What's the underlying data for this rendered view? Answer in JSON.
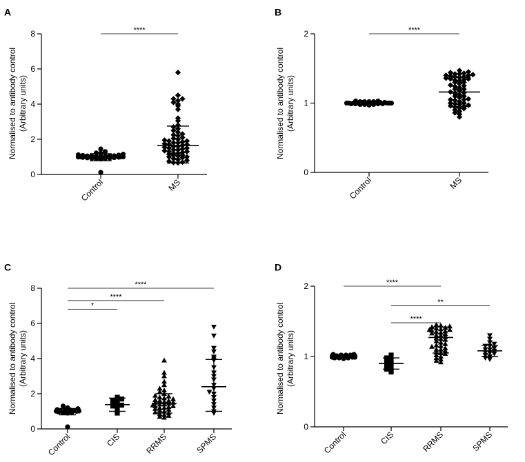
{
  "colors": {
    "ink": "#000000",
    "background": "#ffffff"
  },
  "chart_data": [
    {
      "type": "scatter",
      "panel_label": "A",
      "categories": [
        "Control",
        "MS"
      ],
      "ylabel": [
        "Normalised to antibody control",
        "(Arbitrary units)"
      ],
      "ylim": [
        0,
        8
      ],
      "yticks": [
        "0",
        "2",
        "4",
        "6",
        "8"
      ],
      "markers": [
        "circle",
        "diamond"
      ],
      "series": [
        {
          "name": "Control",
          "marker": "circle",
          "mean": 0.98,
          "err_low": 0.78,
          "err_high": 1.18,
          "values": [
            1.0,
            1.02,
            0.98,
            1.05,
            0.95,
            1.1,
            0.92,
            1.0,
            1.2,
            1.3,
            1.45,
            1.08,
            0.97,
            1.04,
            0.9,
            1.15,
            1.01,
            0.96,
            1.03,
            0.99,
            1.06,
            0.94,
            1.12,
            0.88,
            1.0,
            1.22,
            1.05,
            0.93,
            0.12
          ]
        },
        {
          "name": "MS",
          "marker": "diamond",
          "mean": 1.65,
          "err_low": 0.65,
          "err_high": 2.75,
          "values": [
            5.8,
            4.5,
            4.3,
            4.3,
            4.2,
            4.1,
            4.0,
            3.9,
            3.7,
            3.2,
            3.05,
            2.8,
            2.7,
            2.6,
            2.5,
            2.4,
            2.3,
            2.25,
            2.2,
            2.1,
            2.05,
            2.0,
            1.95,
            1.9,
            1.85,
            1.8,
            1.75,
            1.7,
            1.65,
            1.6,
            1.55,
            1.5,
            1.45,
            1.4,
            1.35,
            1.3,
            1.25,
            1.2,
            1.15,
            1.1,
            1.05,
            1.0,
            0.95,
            0.9,
            0.85,
            0.8,
            0.75,
            0.7,
            0.68,
            0.66,
            1.5,
            1.6,
            1.7,
            1.8,
            1.4,
            1.3,
            1.2,
            1.1,
            1.9,
            1.0
          ]
        }
      ],
      "comparisons": [
        {
          "from": "Control",
          "to": "MS",
          "label": "****",
          "y": 8.0
        }
      ]
    },
    {
      "type": "scatter",
      "panel_label": "B",
      "categories": [
        "Control",
        "MS"
      ],
      "ylabel": [
        "Normalised to antibody control",
        "(Arbitrary units)"
      ],
      "ylim": [
        0,
        2
      ],
      "yticks": [
        "0",
        "1",
        "2"
      ],
      "markers": [
        "circle",
        "diamond"
      ],
      "series": [
        {
          "name": "Control",
          "marker": "circle",
          "mean": 1.0,
          "err_low": 0.98,
          "err_high": 1.02,
          "values": [
            1.0,
            1.01,
            0.99,
            1.02,
            0.98,
            1.0,
            1.03,
            0.97,
            1.01,
            0.99,
            1.02,
            1.0,
            0.98,
            1.01,
            1.0,
            0.99,
            1.02,
            1.03,
            0.98,
            1.0,
            1.01,
            0.99,
            1.0,
            1.02,
            0.98
          ]
        },
        {
          "name": "MS",
          "marker": "diamond",
          "mean": 1.16,
          "err_low": 0.95,
          "err_high": 1.37,
          "values": [
            1.47,
            1.45,
            1.44,
            1.43,
            1.42,
            1.42,
            1.41,
            1.4,
            1.4,
            1.39,
            1.38,
            1.37,
            1.36,
            1.35,
            1.34,
            1.33,
            1.32,
            1.3,
            1.28,
            1.26,
            1.24,
            1.22,
            1.2,
            1.18,
            1.16,
            1.14,
            1.12,
            1.1,
            1.08,
            1.06,
            1.05,
            1.04,
            1.02,
            1.0,
            0.99,
            0.98,
            0.97,
            0.96,
            0.95,
            0.94,
            0.93,
            0.92,
            0.9,
            0.88,
            0.86,
            0.84,
            0.8,
            1.3,
            1.25,
            1.15,
            1.05,
            1.2,
            1.1,
            1.0,
            1.35,
            1.38
          ]
        }
      ],
      "comparisons": [
        {
          "from": "Control",
          "to": "MS",
          "label": "****",
          "y": 2.0
        }
      ]
    },
    {
      "type": "scatter",
      "panel_label": "C",
      "categories": [
        "Control",
        "CIS",
        "RRMS",
        "SPMS"
      ],
      "ylabel": [
        "Normalised to antibody control",
        "(Arbitrary units)"
      ],
      "ylim": [
        0,
        8
      ],
      "yticks": [
        "0",
        "2",
        "4",
        "6",
        "8"
      ],
      "markers": [
        "circle",
        "square",
        "triangle",
        "triangle-down"
      ],
      "series": [
        {
          "name": "Control",
          "marker": "circle",
          "mean": 0.98,
          "err_low": 0.8,
          "err_high": 1.16,
          "values": [
            1.0,
            1.02,
            0.98,
            1.05,
            0.95,
            1.1,
            0.92,
            1.0,
            1.2,
            1.3,
            1.08,
            0.97,
            1.04,
            0.9,
            1.15,
            1.01,
            0.96,
            1.03,
            0.99,
            0.12
          ]
        },
        {
          "name": "CIS",
          "marker": "square",
          "mean": 1.38,
          "err_low": 1.0,
          "err_high": 1.75,
          "values": [
            1.8,
            1.7,
            1.6,
            1.5,
            1.4,
            1.3,
            1.2,
            1.0,
            0.9,
            1.35,
            1.55
          ]
        },
        {
          "name": "RRMS",
          "marker": "triangle",
          "mean": 1.45,
          "err_low": 0.9,
          "err_high": 2.0,
          "values": [
            3.9,
            3.2,
            3.0,
            2.7,
            2.5,
            2.3,
            2.2,
            2.1,
            2.0,
            1.9,
            1.85,
            1.8,
            1.75,
            1.7,
            1.65,
            1.6,
            1.55,
            1.5,
            1.45,
            1.4,
            1.35,
            1.3,
            1.25,
            1.2,
            1.15,
            1.1,
            1.05,
            1.0,
            0.95,
            0.9,
            0.85,
            0.8,
            0.75,
            0.7,
            0.65,
            1.5,
            1.4,
            1.3,
            1.6,
            1.2
          ]
        },
        {
          "name": "SPMS",
          "marker": "triangle-down",
          "mean": 2.4,
          "err_low": 1.0,
          "err_high": 3.95,
          "values": [
            5.8,
            5.3,
            4.6,
            4.4,
            4.1,
            4.0,
            3.9,
            3.5,
            3.2,
            3.0,
            2.8,
            2.5,
            2.3,
            2.1,
            2.0,
            1.8,
            1.6,
            1.4,
            1.2,
            1.0,
            0.9
          ]
        }
      ],
      "comparisons": [
        {
          "from": "Control",
          "to": "SPMS",
          "label": "****",
          "y": 8.0
        },
        {
          "from": "Control",
          "to": "RRMS",
          "label": "****",
          "y": 7.3
        },
        {
          "from": "Control",
          "to": "CIS",
          "label": "*",
          "y": 6.8
        }
      ]
    },
    {
      "type": "scatter",
      "panel_label": "D",
      "categories": [
        "Control",
        "CIS",
        "RRMS",
        "SPMS"
      ],
      "ylabel": [
        "Normalised to antibody control",
        "(Arbitrary units)"
      ],
      "ylim": [
        0,
        2
      ],
      "yticks": [
        "0",
        "1",
        "2"
      ],
      "markers": [
        "circle",
        "square",
        "triangle",
        "triangle-down"
      ],
      "series": [
        {
          "name": "Control",
          "marker": "circle",
          "mean": 1.0,
          "err_low": 0.98,
          "err_high": 1.02,
          "values": [
            1.0,
            1.01,
            0.99,
            1.02,
            0.98,
            1.0,
            1.03,
            0.97,
            1.01,
            0.99,
            1.02,
            1.0,
            0.98,
            1.01,
            1.0,
            0.99,
            1.02,
            1.03,
            0.98,
            1.0
          ]
        },
        {
          "name": "CIS",
          "marker": "square",
          "mean": 0.9,
          "err_low": 0.82,
          "err_high": 0.98,
          "values": [
            1.02,
            0.98,
            0.95,
            0.93,
            0.9,
            0.88,
            0.85,
            0.82,
            0.8,
            0.78
          ]
        },
        {
          "name": "RRMS",
          "marker": "triangle",
          "mean": 1.27,
          "err_low": 1.05,
          "err_high": 1.42,
          "values": [
            1.45,
            1.44,
            1.43,
            1.42,
            1.41,
            1.4,
            1.39,
            1.38,
            1.37,
            1.36,
            1.35,
            1.34,
            1.33,
            1.32,
            1.3,
            1.28,
            1.26,
            1.24,
            1.22,
            1.2,
            1.18,
            1.16,
            1.14,
            1.12,
            1.1,
            1.08,
            1.06,
            1.04,
            1.02,
            1.0,
            0.98,
            0.96,
            0.94,
            0.92,
            1.3,
            1.25,
            1.15,
            1.05,
            1.38,
            1.1
          ]
        },
        {
          "name": "SPMS",
          "marker": "triangle-down",
          "mean": 1.08,
          "err_low": 1.0,
          "err_high": 1.16,
          "values": [
            1.3,
            1.25,
            1.2,
            1.18,
            1.15,
            1.12,
            1.1,
            1.08,
            1.06,
            1.05,
            1.04,
            1.02,
            1.0,
            0.98,
            0.96,
            1.1,
            1.15
          ]
        }
      ],
      "comparisons": [
        {
          "from": "Control",
          "to": "RRMS",
          "label": "****",
          "y": 2.0
        },
        {
          "from": "CIS",
          "to": "SPMS",
          "label": "**",
          "y": 1.72
        },
        {
          "from": "CIS",
          "to": "RRMS",
          "label": "****",
          "y": 1.48
        }
      ]
    }
  ]
}
